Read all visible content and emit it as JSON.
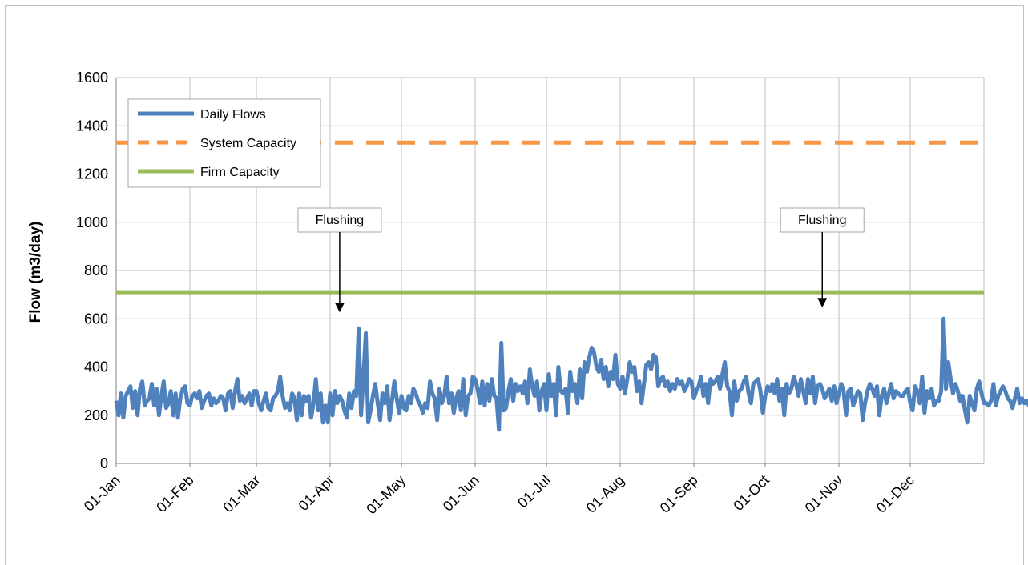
{
  "chart_data": {
    "type": "line",
    "title": "",
    "xlabel": "",
    "ylabel": "Flow (m3/day)",
    "ylim": [
      0,
      1600
    ],
    "yticks": [
      0,
      200,
      400,
      600,
      800,
      1000,
      1200,
      1400,
      1600
    ],
    "xlim": [
      0,
      365
    ],
    "xticks": [
      {
        "label": "01-Jan",
        "day": 0
      },
      {
        "label": "01-Feb",
        "day": 31
      },
      {
        "label": "01-Mar",
        "day": 59
      },
      {
        "label": "01-Apr",
        "day": 90
      },
      {
        "label": "01-May",
        "day": 120
      },
      {
        "label": "01-Jun",
        "day": 151
      },
      {
        "label": "01-Jul",
        "day": 181
      },
      {
        "label": "01-Aug",
        "day": 212
      },
      {
        "label": "01-Sep",
        "day": 243
      },
      {
        "label": "01-Oct",
        "day": 273
      },
      {
        "label": "01-Nov",
        "day": 304
      },
      {
        "label": "01-Dec",
        "day": 334
      }
    ],
    "grid": true,
    "legend_position": "top-left",
    "series": [
      {
        "name": "Daily Flows",
        "color": "#4f81bd",
        "style": "solid",
        "values": [
          260,
          200,
          290,
          190,
          280,
          300,
          320,
          230,
          300,
          200,
          310,
          340,
          240,
          260,
          270,
          330,
          240,
          310,
          200,
          280,
          340,
          230,
          250,
          300,
          200,
          290,
          190,
          270,
          310,
          320,
          250,
          240,
          280,
          290,
          270,
          300,
          230,
          260,
          280,
          290,
          240,
          270,
          250,
          260,
          280,
          270,
          220,
          290,
          300,
          230,
          300,
          350,
          260,
          280,
          250,
          270,
          290,
          240,
          300,
          300,
          250,
          220,
          260,
          290,
          230,
          220,
          270,
          280,
          300,
          360,
          280,
          230,
          250,
          220,
          290,
          270,
          180,
          290,
          200,
          280,
          260,
          280,
          190,
          250,
          350,
          220,
          290,
          170,
          240,
          170,
          290,
          200,
          300,
          250,
          280,
          260,
          220,
          190,
          290,
          230,
          300,
          280,
          560,
          200,
          360,
          540,
          170,
          220,
          280,
          330,
          250,
          180,
          290,
          250,
          320,
          180,
          260,
          340,
          270,
          210,
          280,
          230,
          220,
          280,
          250,
          310,
          290,
          260,
          240,
          210,
          250,
          230,
          340,
          290,
          270,
          180,
          310,
          250,
          280,
          360,
          250,
          290,
          210,
          270,
          300,
          220,
          350,
          200,
          280,
          290,
          360,
          350,
          310,
          250,
          340,
          240,
          330,
          260,
          350,
          280,
          270,
          140,
          500,
          220,
          230,
          300,
          350,
          260,
          330,
          300,
          320,
          290,
          340,
          250,
          390,
          320,
          280,
          340,
          220,
          300,
          330,
          220,
          370,
          280,
          330,
          200,
          400,
          300,
          290,
          310,
          210,
          380,
          300,
          330,
          250,
          390,
          270,
          420,
          380,
          440,
          480,
          460,
          400,
          380,
          430,
          350,
          400,
          320,
          380,
          350,
          450,
          330,
          310,
          360,
          290,
          350,
          420,
          380,
          400,
          300,
          340,
          250,
          330,
          410,
          420,
          390,
          450,
          440,
          320,
          350,
          360,
          320,
          340,
          300,
          330,
          310,
          350,
          330,
          340,
          300,
          320,
          350,
          340,
          270,
          300,
          320,
          360,
          280,
          330,
          250,
          350,
          330,
          340,
          360,
          310,
          370,
          420,
          320,
          300,
          200,
          340,
          260,
          300,
          310,
          340,
          360,
          290,
          250,
          330,
          340,
          350,
          300,
          210,
          280,
          320,
          300,
          330,
          290,
          350,
          260,
          310,
          200,
          330,
          290,
          310,
          360,
          330,
          280,
          350,
          300,
          250,
          350,
          290,
          360,
          250,
          320,
          330,
          310,
          270,
          290,
          310,
          260,
          320,
          250,
          290,
          330,
          300,
          200,
          300,
          310,
          240,
          270,
          300,
          290,
          180,
          250,
          300,
          330,
          310,
          280,
          320,
          200,
          280,
          310,
          250,
          290,
          330,
          270,
          300,
          290,
          280,
          280,
          300,
          310,
          250,
          220,
          320,
          300,
          250,
          360,
          210,
          300,
          270,
          310,
          240,
          260,
          260,
          300,
          600,
          310,
          420,
          350,
          290,
          330,
          300,
          260,
          280,
          220,
          170,
          280,
          250,
          220,
          310,
          340,
          290,
          250,
          250,
          240,
          260,
          330,
          240,
          280,
          300,
          320,
          300,
          270,
          260,
          230,
          270,
          310,
          250,
          270,
          250,
          260,
          240,
          280,
          270,
          230,
          250,
          270,
          260,
          290,
          240,
          280,
          270,
          250,
          260,
          280,
          230,
          250,
          260,
          280,
          250,
          240,
          280,
          200,
          260,
          310,
          270,
          300,
          280,
          230,
          270,
          250,
          290,
          280,
          260,
          240,
          270,
          290,
          290,
          300,
          290
        ]
      },
      {
        "name": "System Capacity",
        "color": "#f79646",
        "style": "dashed",
        "values": [
          1330
        ]
      },
      {
        "name": "Firm Capacity",
        "color": "#9bbb59",
        "style": "solid",
        "values": [
          710
        ]
      }
    ],
    "annotations": [
      {
        "text": "Flushing",
        "x_day": 94,
        "y_value": 600
      },
      {
        "text": "Flushing",
        "x_day": 297,
        "y_value": 620
      }
    ]
  }
}
